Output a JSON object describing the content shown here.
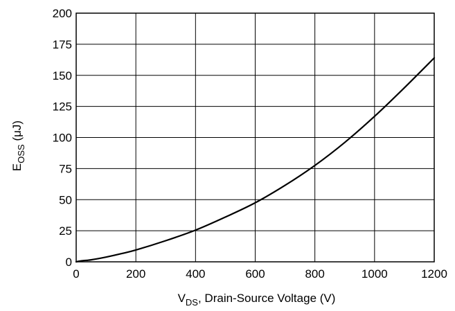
{
  "chart_data": {
    "type": "line",
    "title": "",
    "xlabel": {
      "main": "V",
      "sub": "DS",
      "rest": ", Drain-Source Voltage (V)"
    },
    "ylabel": {
      "main": "E",
      "sub": "OSS",
      "rest": " (μJ)"
    },
    "xlim": [
      0,
      1200
    ],
    "ylim": [
      0,
      200
    ],
    "xticks": [
      0,
      200,
      400,
      600,
      800,
      1000,
      1200
    ],
    "yticks": [
      0,
      25,
      50,
      75,
      100,
      125,
      150,
      175,
      200
    ],
    "xtick_labels": [
      "0",
      "200",
      "400",
      "600",
      "800",
      "1000",
      "1200"
    ],
    "ytick_labels": [
      "0",
      "25",
      "50",
      "75",
      "100",
      "125",
      "150",
      "175",
      "200"
    ],
    "grid": true,
    "colors": {
      "series": "#000000",
      "grid": "#000000",
      "background": "#ffffff"
    },
    "series": [
      {
        "x": [
          0,
          10,
          25,
          50,
          100,
          150,
          200,
          300,
          400,
          500,
          600,
          700,
          800,
          900,
          1000,
          1100,
          1200
        ],
        "y": [
          0,
          0.5,
          1,
          1.6,
          3.8,
          6.5,
          9.5,
          17,
          25.5,
          36,
          47.5,
          61.5,
          77.5,
          96,
          117,
          140,
          164
        ]
      }
    ]
  }
}
